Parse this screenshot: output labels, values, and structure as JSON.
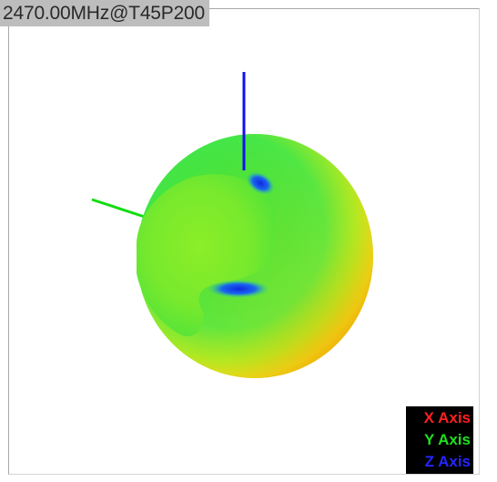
{
  "viewer": {
    "title": "2470.00MHz@T45P200"
  },
  "legend": {
    "items": [
      {
        "label": "X Axis",
        "color": "#ff2020"
      },
      {
        "label": "Y Axis",
        "color": "#1fe01f"
      },
      {
        "label": "Z Axis",
        "color": "#2525ff"
      }
    ]
  },
  "axes": {
    "y_axis_color": "#11dd11",
    "z_axis_color": "#1111ee"
  },
  "pattern_colors": {
    "center": "#7cec2a",
    "mid": "#2ee843",
    "edge_warm": "#ffd21a",
    "rim": "#ffa400",
    "null": "#1030e8"
  }
}
